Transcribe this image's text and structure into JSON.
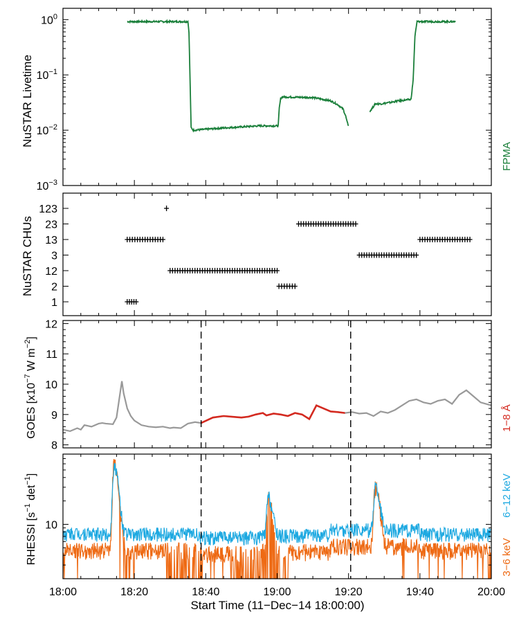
{
  "chart_data": [
    {
      "type": "line",
      "panel": "livetime",
      "ylabel": "NuSTAR Livetime",
      "yscale": "log",
      "ylim": [
        0.001,
        1.6
      ],
      "xlim": [
        0,
        120
      ],
      "ytick_values": [
        1,
        0.1,
        0.01,
        0.001
      ],
      "ytick_bases": [
        "10",
        "10",
        "10",
        "10"
      ],
      "ytick_exps": [
        "0",
        "−1",
        "−2",
        "−3"
      ],
      "series": [
        {
          "name": "FPMA",
          "color": "#1a7f3a",
          "x": [
            18.0,
            35.0,
            35.3,
            35.9,
            36.5,
            45.0,
            55.0,
            60.3,
            60.6,
            61.0,
            61.5,
            70.0,
            75.0,
            77.0,
            78.5,
            79.2,
            79.6,
            80.0
          ],
          "y": [
            0.92,
            0.92,
            0.6,
            0.011,
            0.01,
            0.011,
            0.012,
            0.012,
            0.025,
            0.038,
            0.04,
            0.039,
            0.034,
            0.029,
            0.024,
            0.018,
            0.014,
            0.012
          ]
        },
        {
          "name": "FPMA_b",
          "color": "#1a7f3a",
          "x": [
            86.0,
            87.5,
            89.0,
            92.0,
            94.0,
            97.5,
            98.1,
            98.6,
            99.2,
            104.0,
            110.0
          ],
          "y": [
            0.022,
            0.03,
            0.03,
            0.032,
            0.034,
            0.036,
            0.08,
            0.5,
            0.92,
            0.92,
            0.92
          ]
        }
      ]
    },
    {
      "type": "scatter",
      "panel": "chus",
      "ylabel": "NuSTAR CHUs",
      "xlim": [
        0,
        120
      ],
      "categories": [
        "1",
        "2",
        "12",
        "3",
        "13",
        "23",
        "123"
      ],
      "series": [
        {
          "name": "CHU",
          "color": "#000000",
          "segments": [
            {
              "level": 0,
              "x0": 18.0,
              "x1": 20.5
            },
            {
              "level": 4,
              "x0": 18.0,
              "x1": 28.0
            },
            {
              "level": 6,
              "x0": 29.0,
              "x1": 29.0
            },
            {
              "level": 2,
              "x0": 30.0,
              "x1": 60.0
            },
            {
              "level": 1,
              "x0": 60.5,
              "x1": 65.0
            },
            {
              "level": 5,
              "x0": 66.0,
              "x1": 82.0
            },
            {
              "level": 3,
              "x0": 83.0,
              "x1": 99.0
            },
            {
              "level": 4,
              "x0": 100.0,
              "x1": 114.0
            }
          ]
        }
      ]
    },
    {
      "type": "line",
      "panel": "goes",
      "ylabel_main": "GOES [x10",
      "ylabel_exp": "−7",
      "ylabel_mid": " W m",
      "ylabel_exp2": "−2",
      "ylabel_end": "]",
      "ylim": [
        7.9,
        12.1
      ],
      "xlim": [
        0,
        120
      ],
      "yticks": [
        "8",
        "9",
        "10",
        "11",
        "12"
      ],
      "ytick_values": [
        8,
        9,
        10,
        11,
        12
      ],
      "series": [
        {
          "name": "GOES_full",
          "color": "#999999",
          "x": [
            0,
            2,
            4,
            5,
            6,
            8,
            10,
            11,
            12,
            14,
            15,
            16,
            16.5,
            17,
            18,
            19,
            20,
            22,
            24,
            26,
            28,
            30,
            31,
            33,
            35,
            37,
            38.7,
            42,
            45,
            48,
            50,
            52,
            54,
            56,
            57,
            59,
            61,
            63,
            65,
            67,
            69,
            71,
            73,
            75,
            77,
            79,
            81,
            83,
            85,
            87,
            89,
            91,
            93,
            95,
            97,
            99,
            101,
            103,
            105,
            107,
            109,
            111,
            113,
            115,
            117,
            120
          ],
          "y": [
            8.5,
            8.45,
            8.55,
            8.5,
            8.65,
            8.6,
            8.7,
            8.72,
            8.7,
            8.68,
            8.9,
            9.7,
            10.1,
            9.7,
            9.2,
            8.95,
            8.8,
            8.65,
            8.6,
            8.58,
            8.6,
            8.55,
            8.57,
            8.55,
            8.7,
            8.75,
            8.72,
            8.9,
            8.95,
            8.92,
            8.9,
            8.93,
            9.0,
            9.05,
            8.97,
            9.03,
            9.0,
            8.95,
            9.05,
            9.0,
            8.85,
            9.3,
            9.2,
            9.1,
            9.08,
            9.05,
            9.08,
            9.03,
            9.05,
            8.95,
            9.1,
            9.05,
            9.15,
            9.3,
            9.45,
            9.5,
            9.4,
            9.35,
            9.45,
            9.5,
            9.35,
            9.65,
            9.8,
            9.6,
            9.4,
            9.3
          ]
        }
      ],
      "highlight": {
        "name": "1–8 Å",
        "color": "#d42a20",
        "x0": 38.7,
        "x1": 80.6
      }
    },
    {
      "type": "line",
      "panel": "rhessi",
      "ylabel_main": "RHESSI [s",
      "ylabel_exp": "−1",
      "ylabel_mid": " det",
      "ylabel_exp2": "−1",
      "ylabel_end": "]",
      "yscale": "log",
      "ylim": [
        2.0,
        80.0
      ],
      "xlim": [
        0,
        120
      ],
      "ytick_values": [
        10
      ],
      "ytick_labels": [
        "10"
      ],
      "series": [
        {
          "name": "6–12 keV",
          "color": "#1ea9e1"
        },
        {
          "name": "3–6 keV",
          "color": "#ee6a14"
        }
      ],
      "peaks": [
        {
          "t": 14.3,
          "h": 48.0
        },
        {
          "t": 57.5,
          "h": 15.5
        },
        {
          "t": 87.5,
          "h": 22.0
        }
      ]
    }
  ],
  "xaxis": {
    "ticks": [
      "18:00",
      "18:20",
      "18:40",
      "19:00",
      "19:20",
      "19:40",
      "20:00"
    ],
    "label": "Start Time (11−Dec−14 18:00:00)",
    "dashed_lines": [
      38.7,
      80.6
    ]
  },
  "side_labels": {
    "fpma": "FPMA",
    "goes": "1−8 Å",
    "rhessi_high": "6−12 keV",
    "rhessi_low": "3−6 keV"
  },
  "colors": {
    "fpma": "#1a7f3a",
    "goes_line": "#999999",
    "goes_highlight": "#d42a20",
    "rhessi_high": "#1ea9e1",
    "rhessi_low": "#ee6a14"
  }
}
